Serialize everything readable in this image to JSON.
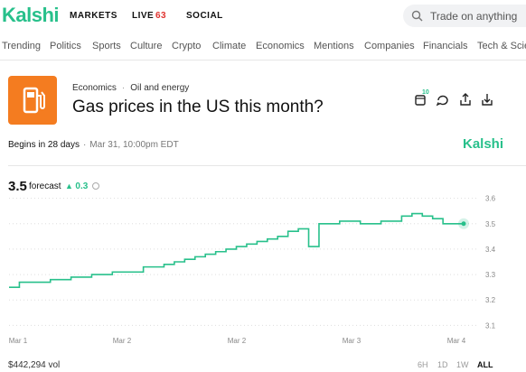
{
  "header": {
    "logo": "Kalshi",
    "nav": [
      "MARKETS",
      "LIVE",
      "SOCIAL"
    ],
    "live_count": 63,
    "search_placeholder": "Trade on anything"
  },
  "categories": [
    "Trending",
    "Politics",
    "Sports",
    "Culture",
    "Crypto",
    "Climate",
    "Economics",
    "Mentions",
    "Companies",
    "Financials",
    "Tech & Science"
  ],
  "market": {
    "breadcrumb": [
      "Economics",
      "Oil and energy"
    ],
    "title": "Gas prices in the US this month?",
    "calendar_badge": 10,
    "begins": "Begins in 28 days",
    "date": "Mar 31, 10:00pm EDT",
    "brand": "Kalshi"
  },
  "forecast": {
    "value": 3.5,
    "label": "forecast",
    "change": 0.3
  },
  "chart_data": {
    "type": "line",
    "color": "#28c08b",
    "x_labels": [
      "Mar 1",
      "Mar 2",
      "Mar 2",
      "Mar 3",
      "Mar 4"
    ],
    "values": [
      3.25,
      3.27,
      3.27,
      3.27,
      3.28,
      3.28,
      3.29,
      3.29,
      3.3,
      3.3,
      3.31,
      3.31,
      3.31,
      3.33,
      3.33,
      3.34,
      3.35,
      3.36,
      3.37,
      3.38,
      3.39,
      3.4,
      3.41,
      3.42,
      3.43,
      3.44,
      3.45,
      3.47,
      3.48,
      3.41,
      3.5,
      3.5,
      3.51,
      3.51,
      3.5,
      3.5,
      3.51,
      3.51,
      3.53,
      3.54,
      3.53,
      3.52,
      3.5,
      3.5,
      3.5
    ],
    "ylim": [
      3.08,
      3.62
    ],
    "yticks": [
      3.1,
      3.2,
      3.3,
      3.4,
      3.5,
      3.6
    ],
    "grid": true
  },
  "footer": {
    "volume": "$442,294 vol",
    "ranges": [
      "6H",
      "1D",
      "1W",
      "ALL"
    ]
  }
}
